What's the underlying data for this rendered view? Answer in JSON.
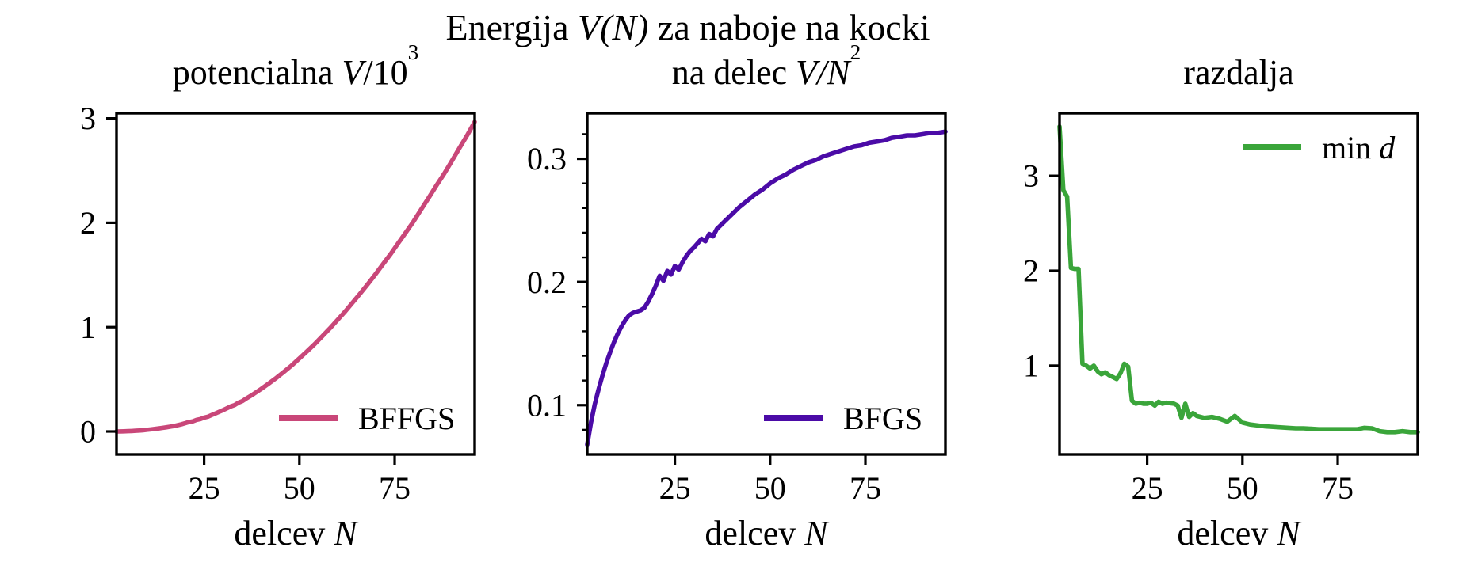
{
  "suptitle": {
    "pre": "Energija ",
    "math": "V(N)",
    "post": " za naboje na kocki"
  },
  "xlabel": {
    "pre": "delcev ",
    "math": "N"
  },
  "panels": [
    {
      "title_pre": "potencialna ",
      "title_it": "V",
      "title_mid": "/10",
      "title_sup": "3",
      "legend_pre": "BFFGS",
      "legend_it": ""
    },
    {
      "title_pre": "na delec ",
      "title_it": "V/N",
      "title_mid": "",
      "title_sup": "2",
      "legend_pre": "BFGS",
      "legend_it": ""
    },
    {
      "title_pre": "razdalja",
      "title_it": "",
      "title_mid": "",
      "title_sup": "",
      "legend_pre": "min ",
      "legend_it": "d"
    }
  ],
  "colors": {
    "potential_line": "#c94779",
    "per_particle_line": "#4b0ba7",
    "distance_line": "#3aa53a",
    "text": "#000000",
    "background": "#ffffff"
  },
  "chart_data": [
    {
      "type": "line",
      "title": "potencialna V/10^3",
      "xlabel": "delcev N",
      "ylabel": "",
      "grid": false,
      "legend_position": "lower right",
      "xlim": [
        2,
        96
      ],
      "ylim": [
        -0.22,
        3.05
      ],
      "xticks": [
        25,
        50,
        75
      ],
      "xtick_labels": [
        "25",
        "50",
        "75"
      ],
      "yticks": [
        0,
        1,
        2,
        3
      ],
      "ytick_labels": [
        "0",
        "1",
        "2",
        "3"
      ],
      "x": [
        2,
        3,
        4,
        5,
        6,
        7,
        8,
        9,
        10,
        11,
        12,
        13,
        14,
        15,
        16,
        17,
        18,
        19,
        20,
        21,
        22,
        23,
        24,
        25,
        26,
        27,
        28,
        29,
        30,
        32,
        33,
        34,
        35,
        36,
        37,
        38,
        40,
        42,
        44,
        46,
        48,
        50,
        52,
        54,
        56,
        58,
        60,
        62,
        64,
        66,
        68,
        70,
        72,
        74,
        76,
        78,
        80,
        82,
        84,
        86,
        88,
        90,
        92,
        94,
        96
      ],
      "series": [
        {
          "name": "BFFGS",
          "color": "#c94779",
          "y": [
            0.0003,
            0.0008,
            0.0016,
            0.0028,
            0.0045,
            0.0066,
            0.0092,
            0.0122,
            0.0158,
            0.0198,
            0.0243,
            0.0292,
            0.0343,
            0.0396,
            0.0453,
            0.0517,
            0.0596,
            0.0686,
            0.0788,
            0.0904,
            0.0973,
            0.1106,
            0.1187,
            0.1331,
            0.142,
            0.1575,
            0.1733,
            0.1892,
            0.2052,
            0.2406,
            0.2537,
            0.2763,
            0.2903,
            0.3149,
            0.3368,
            0.3596,
            0.408,
            0.4604,
            0.515,
            0.5734,
            0.6336,
            0.7,
            0.7679,
            0.8369,
            0.9125,
            0.9889,
            1.0692,
            1.1494,
            1.237,
            1.3242,
            1.4149,
            1.5092,
            1.607,
            1.7031,
            1.8079,
            1.9104,
            2.016,
            2.1315,
            2.2438,
            2.3595,
            2.4703,
            2.592,
            2.7169,
            2.837,
            2.9676
          ]
        }
      ]
    },
    {
      "type": "line",
      "title": "na delec V/N^2",
      "xlabel": "delcev N",
      "ylabel": "",
      "grid": false,
      "legend_position": "lower right",
      "xlim": [
        2,
        96
      ],
      "ylim": [
        0.06,
        0.337
      ],
      "xticks": [
        25,
        50,
        75
      ],
      "xtick_labels": [
        "25",
        "50",
        "75"
      ],
      "yticks": [
        0.1,
        0.2,
        0.3
      ],
      "ytick_labels": [
        "0.1",
        "0.2",
        "0.3"
      ],
      "yminorticks": [
        0.08,
        0.12,
        0.14,
        0.16,
        0.18,
        0.22,
        0.24,
        0.26,
        0.28,
        0.32
      ],
      "x": [
        2,
        3,
        4,
        5,
        6,
        7,
        8,
        9,
        10,
        11,
        12,
        13,
        14,
        15,
        16,
        17,
        18,
        19,
        20,
        21,
        22,
        23,
        24,
        25,
        26,
        27,
        28,
        29,
        30,
        32,
        33,
        34,
        35,
        36,
        37,
        38,
        40,
        42,
        44,
        46,
        48,
        50,
        52,
        54,
        56,
        58,
        60,
        62,
        64,
        66,
        68,
        70,
        72,
        74,
        76,
        78,
        80,
        82,
        84,
        86,
        88,
        90,
        92,
        94,
        96
      ],
      "series": [
        {
          "name": "BFGS",
          "color": "#4b0ba7",
          "y": [
            0.068,
            0.086,
            0.101,
            0.113,
            0.124,
            0.134,
            0.143,
            0.151,
            0.158,
            0.164,
            0.169,
            0.173,
            0.175,
            0.176,
            0.177,
            0.179,
            0.184,
            0.19,
            0.197,
            0.205,
            0.201,
            0.209,
            0.206,
            0.213,
            0.21,
            0.216,
            0.221,
            0.225,
            0.228,
            0.235,
            0.233,
            0.239,
            0.237,
            0.243,
            0.246,
            0.249,
            0.255,
            0.261,
            0.266,
            0.271,
            0.275,
            0.28,
            0.284,
            0.287,
            0.291,
            0.294,
            0.297,
            0.299,
            0.302,
            0.304,
            0.306,
            0.308,
            0.31,
            0.311,
            0.313,
            0.314,
            0.315,
            0.317,
            0.318,
            0.319,
            0.319,
            0.32,
            0.321,
            0.321,
            0.322
          ]
        }
      ]
    },
    {
      "type": "line",
      "title": "razdalja",
      "xlabel": "delcev N",
      "ylabel": "",
      "grid": false,
      "legend_position": "upper right",
      "xlim": [
        2,
        96
      ],
      "ylim": [
        0.065,
        3.66
      ],
      "xticks": [
        25,
        50,
        75
      ],
      "xtick_labels": [
        "25",
        "50",
        "75"
      ],
      "yticks": [
        1,
        2,
        3
      ],
      "ytick_labels": [
        "1",
        "2",
        "3"
      ],
      "x": [
        2,
        3,
        4,
        5,
        6,
        7,
        8,
        9,
        10,
        11,
        12,
        13,
        14,
        15,
        16,
        17,
        18,
        19,
        20,
        21,
        22,
        23,
        24,
        25,
        26,
        27,
        28,
        29,
        30,
        32,
        33,
        34,
        35,
        36,
        37,
        38,
        40,
        42,
        44,
        46,
        48,
        50,
        52,
        54,
        56,
        58,
        60,
        62,
        64,
        66,
        68,
        70,
        72,
        74,
        76,
        78,
        80,
        82,
        84,
        86,
        88,
        90,
        92,
        94,
        96
      ],
      "series": [
        {
          "name": "min d",
          "color": "#3aa53a",
          "y": [
            3.52,
            2.85,
            2.78,
            2.03,
            2.02,
            2.02,
            1.02,
            1.0,
            0.97,
            1.0,
            0.94,
            0.91,
            0.93,
            0.9,
            0.88,
            0.86,
            0.92,
            1.02,
            0.99,
            0.63,
            0.6,
            0.61,
            0.6,
            0.6,
            0.61,
            0.58,
            0.62,
            0.6,
            0.61,
            0.6,
            0.58,
            0.45,
            0.6,
            0.46,
            0.5,
            0.47,
            0.45,
            0.46,
            0.44,
            0.41,
            0.47,
            0.4,
            0.38,
            0.37,
            0.36,
            0.355,
            0.35,
            0.345,
            0.34,
            0.34,
            0.335,
            0.33,
            0.33,
            0.33,
            0.33,
            0.33,
            0.33,
            0.345,
            0.34,
            0.31,
            0.3,
            0.3,
            0.31,
            0.3,
            0.3
          ]
        }
      ]
    }
  ]
}
